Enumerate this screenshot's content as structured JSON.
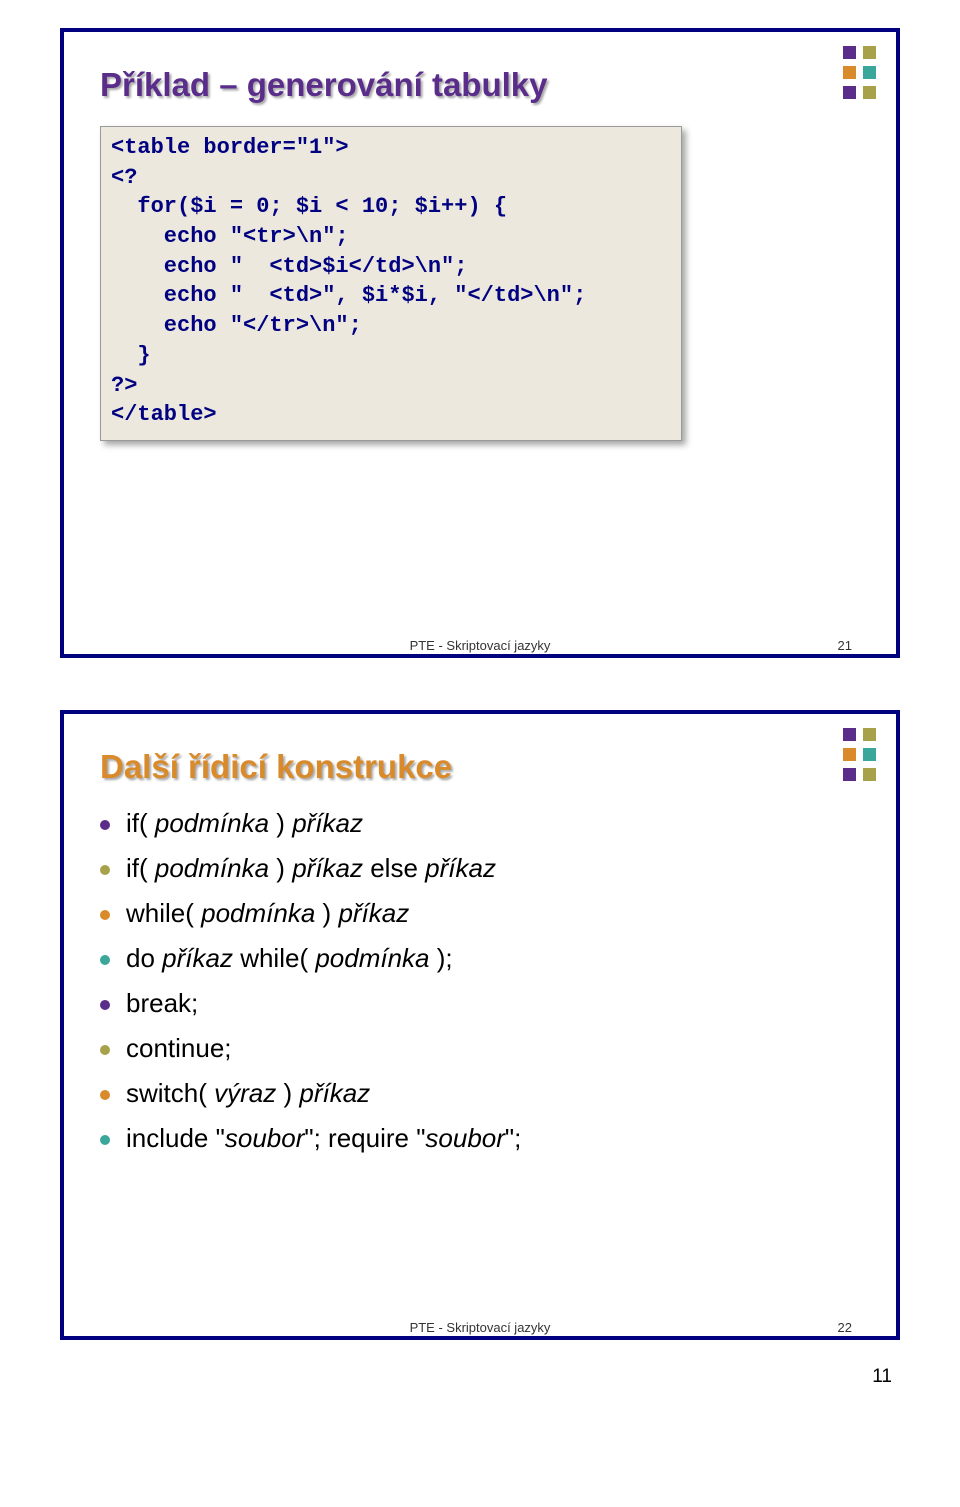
{
  "colors": {
    "frame_border": "#000080",
    "title1": "#5b2d8a",
    "title2": "#d98a2b",
    "code_bg": "#ece8de",
    "code_text": "#000080",
    "deco": [
      "#5b2d8a",
      "#a7a24a",
      "#d98a2b",
      "#3aa79a"
    ]
  },
  "slide1": {
    "title": "Příklad – generování tabulky",
    "code_lines": [
      "<table border=\"1\">",
      "<?",
      "  for($i = 0; $i < 10; $i++) {",
      "    echo \"<tr>\\n\";",
      "    echo \"  <td>$i</td>\\n\";",
      "    echo \"  <td>\", $i*$i, \"</td>\\n\";",
      "    echo \"</tr>\\n\";",
      "  }",
      "?>",
      "</table>"
    ],
    "footer_text": "PTE - Skriptovací jazyky",
    "footer_page": "21"
  },
  "slide2": {
    "title": "Další řídicí konstrukce",
    "bullets": [
      {
        "color": "#5b2d8a",
        "parts": [
          {
            "t": "if( ",
            "i": false
          },
          {
            "t": "podmínka",
            "i": true
          },
          {
            "t": " ) ",
            "i": false
          },
          {
            "t": "příkaz",
            "i": true
          }
        ]
      },
      {
        "color": "#a7a24a",
        "parts": [
          {
            "t": "if( ",
            "i": false
          },
          {
            "t": "podmínka",
            "i": true
          },
          {
            "t": " ) ",
            "i": false
          },
          {
            "t": "příkaz",
            "i": true
          },
          {
            "t": " else ",
            "i": false
          },
          {
            "t": "příkaz",
            "i": true
          }
        ]
      },
      {
        "color": "#d98a2b",
        "parts": [
          {
            "t": "while( ",
            "i": false
          },
          {
            "t": "podmínka",
            "i": true
          },
          {
            "t": " ) ",
            "i": false
          },
          {
            "t": "příkaz",
            "i": true
          }
        ]
      },
      {
        "color": "#3aa79a",
        "parts": [
          {
            "t": "do ",
            "i": false
          },
          {
            "t": "příkaz",
            "i": true
          },
          {
            "t": " while( ",
            "i": false
          },
          {
            "t": "podmínka",
            "i": true
          },
          {
            "t": " );",
            "i": false
          }
        ]
      },
      {
        "color": "#5b2d8a",
        "parts": [
          {
            "t": "break;",
            "i": false
          }
        ]
      },
      {
        "color": "#a7a24a",
        "parts": [
          {
            "t": "continue;",
            "i": false
          }
        ]
      },
      {
        "color": "#d98a2b",
        "parts": [
          {
            "t": "switch( ",
            "i": false
          },
          {
            "t": "výraz",
            "i": true
          },
          {
            "t": " ) ",
            "i": false
          },
          {
            "t": "příkaz",
            "i": true
          }
        ]
      },
      {
        "color": "#3aa79a",
        "parts": [
          {
            "t": "include \"",
            "i": false
          },
          {
            "t": "soubor",
            "i": true
          },
          {
            "t": "\";    require \"",
            "i": false
          },
          {
            "t": "soubor",
            "i": true
          },
          {
            "t": "\";",
            "i": false
          }
        ]
      }
    ],
    "footer_text": "PTE - Skriptovací jazyky",
    "footer_page": "22"
  },
  "page_number": "11"
}
